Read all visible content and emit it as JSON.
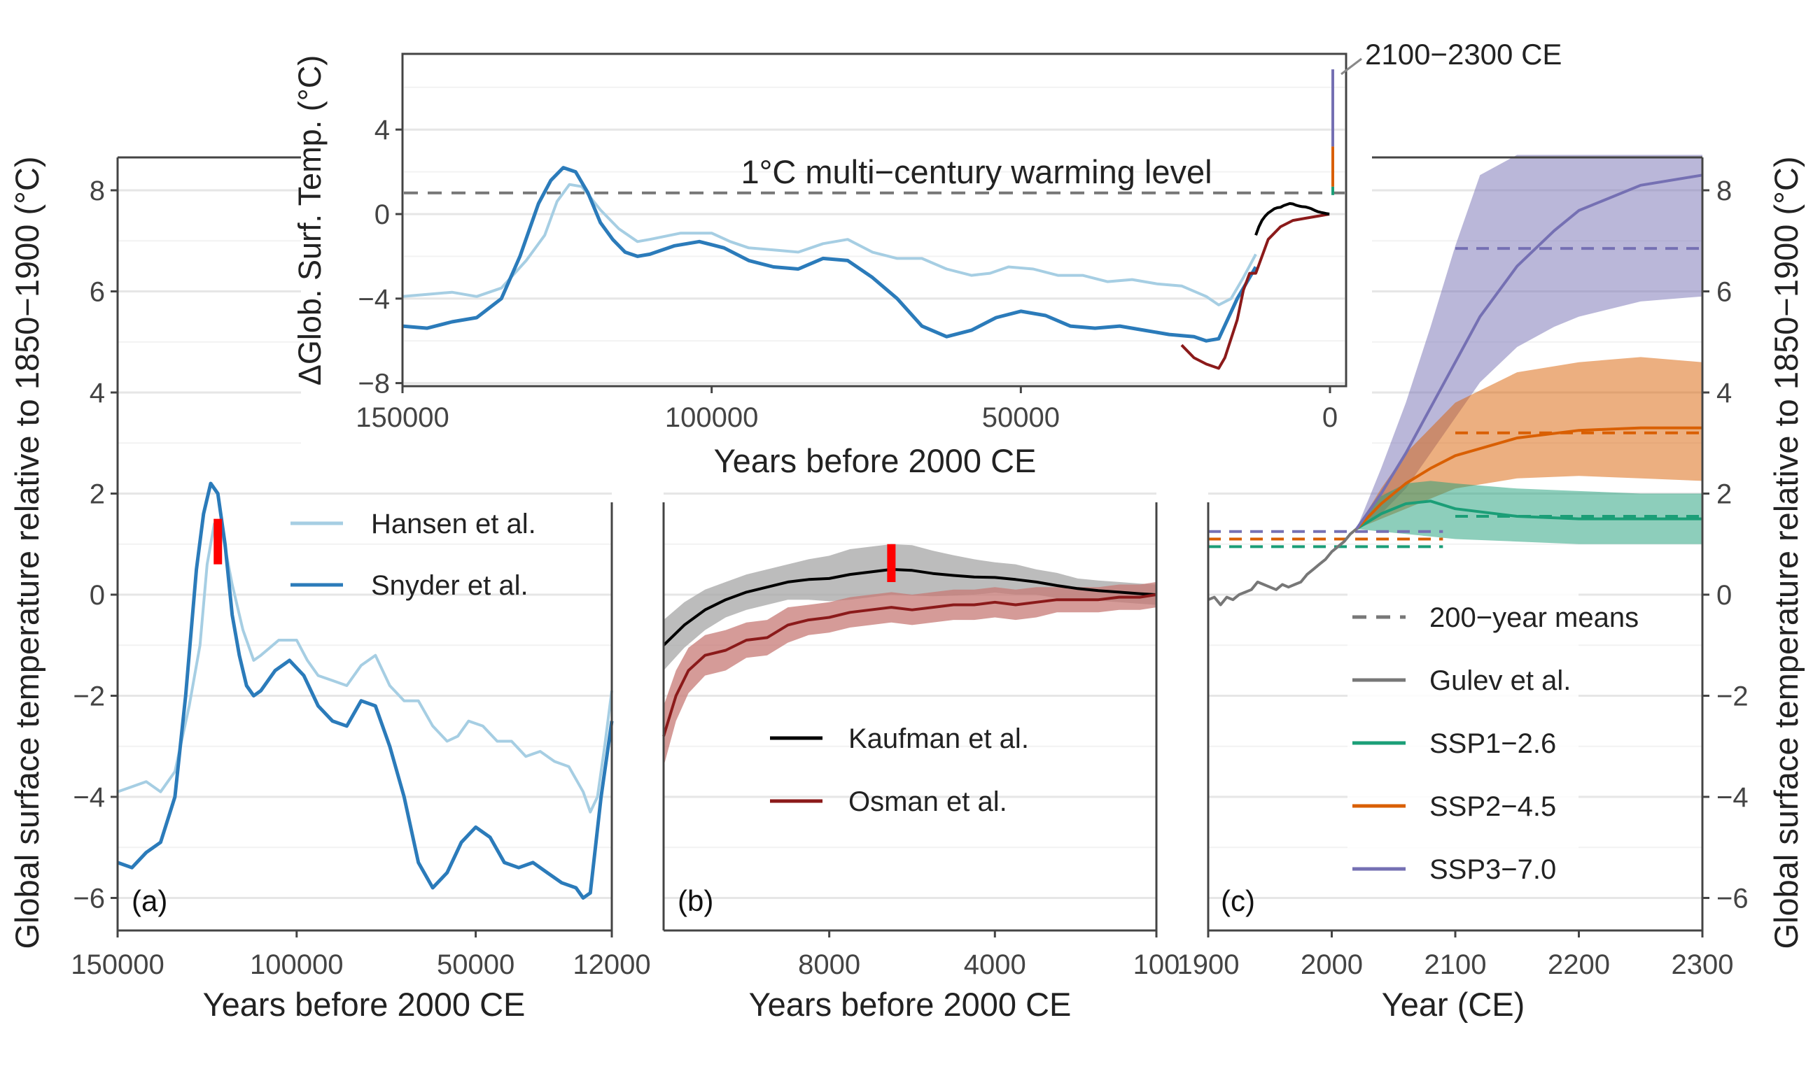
{
  "figure": {
    "left_axis_label": "Global surface temperature relative to 1850−1900 (°C)",
    "right_axis_label": "Global surface temperature relative to 1850−1900 (°C)",
    "y_ticks": [
      "8",
      "6",
      "4",
      "2",
      "0",
      "−2",
      "−4",
      "−6"
    ],
    "y_tick_values": [
      8,
      6,
      4,
      2,
      0,
      -2,
      -4,
      -6
    ],
    "colors": {
      "hansen": "#a6cee3",
      "snyder": "#2b7bba",
      "kaufman": "#000000",
      "osman": "#8b1a1a",
      "gulev": "#777777",
      "ssp126": "#1b9e77",
      "ssp245": "#d95f02",
      "ssp370": "#7570b3",
      "marker": "#ff0000"
    }
  },
  "chart_data": [
    {
      "panel": "(a)",
      "type": "line",
      "xlabel": "Years before 2000 CE",
      "x_ticks": [
        "150000",
        "100000",
        "50000",
        "12000"
      ],
      "xlim": [
        150000,
        12000
      ],
      "ylim": [
        -6.7,
        8.7
      ],
      "legend": [
        "Hansen et al.",
        "Snyder et al."
      ],
      "series": [
        {
          "name": "Hansen et al.",
          "color": "#a6cee3",
          "x": [
            150000,
            146000,
            142000,
            138000,
            134000,
            130000,
            127000,
            125000,
            123000,
            121000,
            118000,
            115000,
            112000,
            110000,
            105000,
            100000,
            97000,
            94000,
            90000,
            86000,
            82000,
            78000,
            74000,
            70000,
            66000,
            62000,
            58000,
            55000,
            52000,
            48000,
            44000,
            40000,
            36000,
            32000,
            28000,
            24000,
            20000,
            18000,
            16000,
            14000,
            12000
          ],
          "y": [
            -3.9,
            -3.8,
            -3.7,
            -3.9,
            -3.5,
            -2.2,
            -1.0,
            0.6,
            1.4,
            1.3,
            0.2,
            -0.7,
            -1.3,
            -1.2,
            -0.9,
            -0.9,
            -1.3,
            -1.6,
            -1.7,
            -1.8,
            -1.4,
            -1.2,
            -1.8,
            -2.1,
            -2.1,
            -2.6,
            -2.9,
            -2.8,
            -2.5,
            -2.6,
            -2.9,
            -2.9,
            -3.2,
            -3.1,
            -3.3,
            -3.4,
            -3.9,
            -4.3,
            -4.0,
            -3.0,
            -1.9
          ]
        },
        {
          "name": "Snyder et al.",
          "color": "#2b7bba",
          "x": [
            150000,
            146000,
            142000,
            138000,
            134000,
            131000,
            128000,
            126000,
            124000,
            122000,
            120000,
            118000,
            116000,
            114000,
            112000,
            110000,
            106000,
            102000,
            98000,
            94000,
            90000,
            86000,
            82000,
            78000,
            74000,
            70000,
            66000,
            62000,
            58000,
            54000,
            50000,
            46000,
            42000,
            38000,
            34000,
            30000,
            26000,
            22000,
            20000,
            18000,
            15000,
            12000
          ],
          "y": [
            -5.3,
            -5.4,
            -5.1,
            -4.9,
            -4.0,
            -2.0,
            0.5,
            1.6,
            2.2,
            2.0,
            1.0,
            -0.4,
            -1.2,
            -1.8,
            -2.0,
            -1.9,
            -1.5,
            -1.3,
            -1.6,
            -2.2,
            -2.5,
            -2.6,
            -2.1,
            -2.2,
            -3.0,
            -4.0,
            -5.3,
            -5.8,
            -5.5,
            -4.9,
            -4.6,
            -4.8,
            -5.3,
            -5.4,
            -5.3,
            -5.5,
            -5.7,
            -5.8,
            -6.0,
            -5.9,
            -4.0,
            -2.5
          ]
        }
      ],
      "marker": {
        "x": 122000,
        "y_range": [
          0.6,
          1.5
        ]
      }
    },
    {
      "panel": "(b)",
      "type": "line",
      "xlabel": "Years before 2000 CE",
      "x_ticks": [
        "8000",
        "4000",
        "100"
      ],
      "xlim": [
        12000,
        100
      ],
      "legend": [
        "Kaufman et al.",
        "Osman et al."
      ],
      "series": [
        {
          "name": "Kaufman et al.",
          "color": "#000000",
          "x": [
            12000,
            11500,
            11000,
            10500,
            10000,
            9500,
            9000,
            8500,
            8000,
            7500,
            7000,
            6500,
            6000,
            5500,
            5000,
            4500,
            4000,
            3500,
            3000,
            2500,
            2000,
            1500,
            1000,
            500,
            100
          ],
          "y": [
            -1.0,
            -0.6,
            -0.3,
            -0.1,
            0.05,
            0.15,
            0.25,
            0.3,
            0.32,
            0.4,
            0.45,
            0.5,
            0.48,
            0.42,
            0.38,
            0.35,
            0.34,
            0.3,
            0.25,
            0.18,
            0.12,
            0.08,
            0.05,
            0.02,
            0.0
          ],
          "band": [
            0.5,
            0.45,
            0.4,
            0.35,
            0.35,
            0.35,
            0.35,
            0.4,
            0.45,
            0.5,
            0.5,
            0.5,
            0.5,
            0.45,
            0.4,
            0.35,
            0.3,
            0.3,
            0.25,
            0.25,
            0.2,
            0.2,
            0.2,
            0.2,
            0.2
          ]
        },
        {
          "name": "Osman et al.",
          "color": "#8b1a1a",
          "x": [
            12000,
            11700,
            11400,
            11000,
            10500,
            10000,
            9500,
            9000,
            8500,
            8000,
            7500,
            7000,
            6500,
            6000,
            5500,
            5000,
            4500,
            4000,
            3500,
            3000,
            2500,
            2000,
            1500,
            1000,
            500,
            100
          ],
          "y": [
            -2.8,
            -2.0,
            -1.5,
            -1.2,
            -1.1,
            -0.9,
            -0.85,
            -0.6,
            -0.5,
            -0.45,
            -0.35,
            -0.3,
            -0.25,
            -0.3,
            -0.25,
            -0.2,
            -0.2,
            -0.15,
            -0.2,
            -0.15,
            -0.1,
            -0.1,
            -0.1,
            -0.05,
            -0.05,
            0.0
          ],
          "band": [
            0.6,
            0.5,
            0.45,
            0.4,
            0.4,
            0.35,
            0.35,
            0.35,
            0.3,
            0.3,
            0.3,
            0.3,
            0.3,
            0.3,
            0.3,
            0.3,
            0.3,
            0.3,
            0.3,
            0.3,
            0.25,
            0.25,
            0.25,
            0.25,
            0.25,
            0.25
          ]
        }
      ],
      "marker": {
        "x": 6500,
        "y_range": [
          0.25,
          1.0
        ]
      }
    },
    {
      "panel": "(c)",
      "type": "line",
      "xlabel": "Year (CE)",
      "x_ticks": [
        "1900",
        "2000",
        "2100",
        "2200",
        "2300"
      ],
      "xlim": [
        1900,
        2300
      ],
      "legend": [
        "200−year means",
        "Gulev et al.",
        "SSP1−2.6",
        "SSP2−4.5",
        "SSP3−7.0"
      ],
      "observed": {
        "name": "Gulev et al.",
        "color": "#777777",
        "x": [
          1900,
          1905,
          1910,
          1915,
          1920,
          1925,
          1930,
          1935,
          1940,
          1945,
          1950,
          1955,
          1960,
          1965,
          1970,
          1975,
          1980,
          1985,
          1990,
          1995,
          2000,
          2005,
          2010,
          2015,
          2020
        ],
        "y": [
          -0.1,
          -0.05,
          -0.2,
          -0.05,
          -0.1,
          0.0,
          0.05,
          0.1,
          0.25,
          0.2,
          0.15,
          0.1,
          0.2,
          0.15,
          0.2,
          0.25,
          0.4,
          0.5,
          0.6,
          0.7,
          0.85,
          0.95,
          1.05,
          1.2,
          1.3
        ]
      },
      "series": [
        {
          "name": "SSP1−2.6",
          "color": "#1b9e77",
          "x": [
            2020,
            2040,
            2060,
            2080,
            2100,
            2150,
            2200,
            2250,
            2300
          ],
          "y": [
            1.3,
            1.6,
            1.8,
            1.85,
            1.7,
            1.55,
            1.5,
            1.5,
            1.5
          ],
          "lower": [
            1.3,
            1.25,
            1.2,
            1.15,
            1.1,
            1.05,
            1.0,
            1.0,
            1.0
          ],
          "upper": [
            1.3,
            1.95,
            2.2,
            2.25,
            2.2,
            2.1,
            2.05,
            2.0,
            2.0
          ],
          "mean_200yr": [
            {
              "x0": 1900,
              "x1": 2090,
              "y": 0.95
            },
            {
              "x0": 2100,
              "x1": 2300,
              "y": 1.55
            }
          ]
        },
        {
          "name": "SSP2−4.5",
          "color": "#d95f02",
          "x": [
            2020,
            2040,
            2060,
            2080,
            2100,
            2150,
            2200,
            2250,
            2300
          ],
          "y": [
            1.3,
            1.8,
            2.2,
            2.5,
            2.75,
            3.1,
            3.25,
            3.3,
            3.3
          ],
          "lower": [
            1.3,
            1.5,
            1.7,
            1.9,
            2.1,
            2.3,
            2.35,
            2.3,
            2.25
          ],
          "upper": [
            1.3,
            2.1,
            2.8,
            3.3,
            3.8,
            4.4,
            4.6,
            4.7,
            4.6
          ],
          "mean_200yr": [
            {
              "x0": 1900,
              "x1": 2090,
              "y": 1.1
            },
            {
              "x0": 2100,
              "x1": 2300,
              "y": 3.2
            }
          ]
        },
        {
          "name": "SSP3−7.0",
          "color": "#7570b3",
          "x": [
            2020,
            2040,
            2060,
            2080,
            2100,
            2120,
            2150,
            2180,
            2200,
            2250,
            2300
          ],
          "y": [
            1.3,
            2.0,
            2.8,
            3.7,
            4.6,
            5.5,
            6.5,
            7.2,
            7.6,
            8.1,
            8.3
          ],
          "lower": [
            1.3,
            1.6,
            2.1,
            2.8,
            3.5,
            4.2,
            4.9,
            5.3,
            5.5,
            5.8,
            5.9
          ],
          "upper": [
            1.3,
            2.5,
            3.8,
            5.3,
            6.9,
            8.3,
            8.7,
            8.7,
            8.7,
            8.7,
            8.7
          ],
          "mean_200yr": [
            {
              "x0": 1900,
              "x1": 2090,
              "y": 1.25
            },
            {
              "x0": 2100,
              "x1": 2300,
              "y": 6.85
            }
          ]
        }
      ]
    },
    {
      "panel": "inset",
      "type": "line",
      "ylabel": "ΔGlob. Surf. Temp. (°C)",
      "xlabel": "Years before 2000 CE",
      "x_ticks": [
        "150000",
        "100000",
        "50000",
        "0"
      ],
      "y_ticks": [
        "4",
        "0",
        "−4",
        "−8"
      ],
      "y_tick_values": [
        4,
        0,
        -4,
        -8
      ],
      "xlim": [
        150000,
        0
      ],
      "ylim": [
        -8,
        7.5
      ],
      "annotation_warming": "1°C multi−century warming level",
      "annotation_future": "2100−2300 CE",
      "warming_level": 1
    }
  ]
}
